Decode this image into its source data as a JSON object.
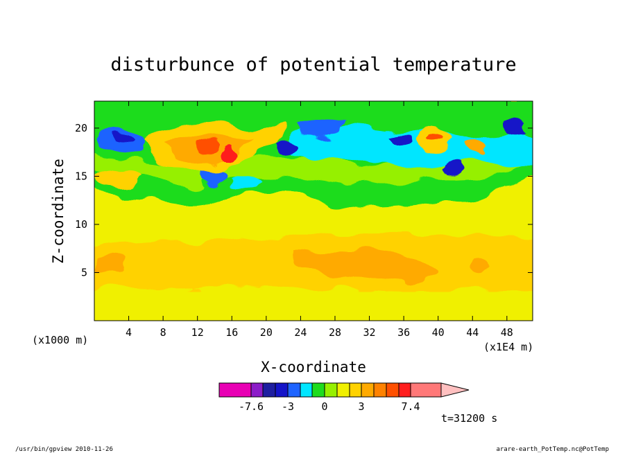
{
  "chart_data": {
    "type": "heatmap",
    "title": "disturbunce of potential temperature",
    "xlabel": "X-coordinate",
    "ylabel": "Z-coordinate",
    "x_unit_left": "(x1000 m)",
    "x_unit_right": "(x1E4 m)",
    "xlim": [
      0,
      51
    ],
    "ylim": [
      0,
      22.8
    ],
    "x_ticks": [
      4,
      8,
      12,
      16,
      20,
      24,
      28,
      32,
      36,
      40,
      44,
      48
    ],
    "x_tick_labels": [
      "4",
      "8",
      "12",
      "16",
      "20",
      "24",
      "28",
      "32",
      "36",
      "40",
      "44",
      "48"
    ],
    "y_ticks": [
      5,
      10,
      15,
      20
    ],
    "y_tick_labels": [
      "5",
      "10",
      "15",
      "20"
    ],
    "colorbar": {
      "colors": [
        "#e800b4",
        "#8c1cc8",
        "#1e1ea0",
        "#1414c8",
        "#1e64ff",
        "#00e6ff",
        "#1edc1e",
        "#96f000",
        "#f0f000",
        "#ffd200",
        "#ffaa00",
        "#ff8200",
        "#ff5000",
        "#ff1e1e",
        "#ff7878",
        "#ffc0c0"
      ],
      "tick_labels": [
        "-7.6",
        "-3",
        "0",
        "3",
        "7.4"
      ]
    },
    "time_label": "t=31200 s",
    "grid": false
  },
  "footer": {
    "left": "/usr/bin/gpview  2010-11-26",
    "right": "arare-earth_PotTemp.nc@PotTemp"
  }
}
